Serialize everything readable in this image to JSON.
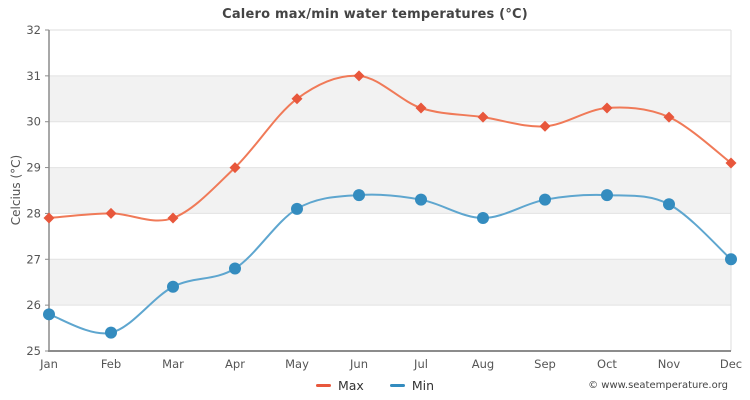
{
  "chart_data": {
    "type": "line",
    "title": "Calero max/min water temperatures (°C)",
    "xlabel": "",
    "ylabel": "Celcius (°C)",
    "categories": [
      "Jan",
      "Feb",
      "Mar",
      "Apr",
      "May",
      "Jun",
      "Jul",
      "Aug",
      "Sep",
      "Oct",
      "Nov",
      "Dec"
    ],
    "series": [
      {
        "name": "Max",
        "marker": "diamond",
        "color": "#e8573c",
        "line_color": "#f07a58",
        "values": [
          27.9,
          28.0,
          27.9,
          29.0,
          30.5,
          31.0,
          30.3,
          30.1,
          29.9,
          30.3,
          30.1,
          29.1
        ]
      },
      {
        "name": "Min",
        "marker": "circle",
        "color": "#348cbf",
        "line_color": "#5ea6cf",
        "values": [
          25.8,
          25.4,
          26.4,
          26.8,
          28.1,
          28.4,
          28.3,
          27.9,
          28.3,
          28.4,
          28.2,
          27.0
        ]
      }
    ],
    "ylim": [
      25,
      32
    ],
    "ytick_step": 1,
    "yticks": [
      25,
      26,
      27,
      28,
      29,
      30,
      31,
      32
    ],
    "grid": true,
    "band_pairs": [
      [
        30,
        31
      ],
      [
        28,
        29
      ],
      [
        26,
        27
      ]
    ],
    "band_color": "#f2f2f2",
    "gridline_color": "#e2e2e2",
    "axis_color": "#8c8c8c",
    "border_color": "#dddddd",
    "legend_position": "bottom"
  },
  "footer": {
    "watermark": "© www.seatemperature.org"
  }
}
